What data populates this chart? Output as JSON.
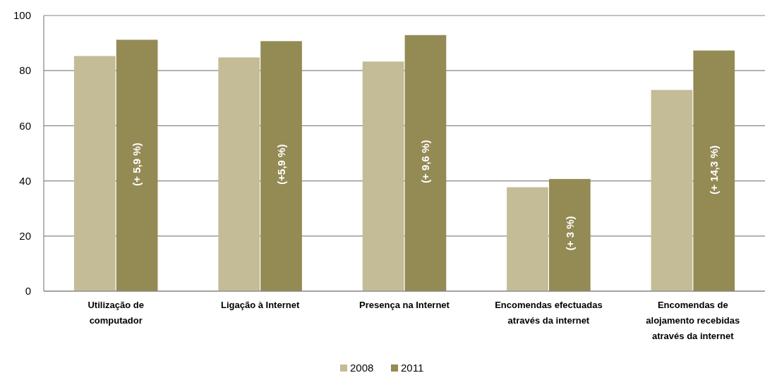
{
  "chart_data": {
    "type": "bar",
    "categories": [
      "Utilização de computador",
      "Ligação à Internet",
      "Presença na Internet",
      "Encomendas efectuadas através da internet",
      "Encomendas de alojamento recebidas através da internet"
    ],
    "series": [
      {
        "name": "2008",
        "color": "#c4bc96",
        "values": [
          85.3,
          84.8,
          83.3,
          37.7,
          73.0
        ]
      },
      {
        "name": "2011",
        "color": "#948a54",
        "values": [
          91.2,
          90.7,
          92.9,
          40.7,
          87.3
        ]
      }
    ],
    "ylim": [
      0,
      100
    ],
    "yticks": [
      0,
      20,
      40,
      60,
      80,
      100
    ],
    "grid": "y",
    "legend": "bottom",
    "annotations": [
      {
        "text": "(+ 5,9 %)",
        "x": "Utilização de computador",
        "y": 46
      },
      {
        "text": "(+5,9 %)",
        "x": "Ligação à Internet",
        "y": 46
      },
      {
        "text": "(+ 9,6 %)",
        "x": "Presença na Internet",
        "y": 47
      },
      {
        "text": "(+ 3 %)",
        "x": "Encomendas efectuadas através da internet",
        "y": 21
      },
      {
        "text": "(+ 14,3 %)",
        "x": "Encomendas de alojamento recebidas através da internet",
        "y": 44
      }
    ]
  }
}
